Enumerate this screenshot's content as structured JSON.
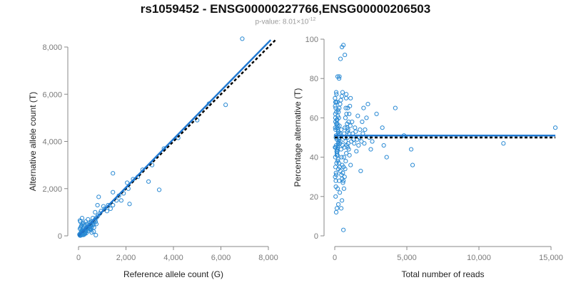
{
  "header": {
    "title": "rs1059452 - ENSG00000227766,ENSG00000206503",
    "pvalue_prefix": "p-value: 8.01×10",
    "pvalue_exp": "-12"
  },
  "colors": {
    "points": "#2a8ad4",
    "fit_line": "#1f78d1",
    "reference_line": "#000000",
    "axis": "#888888"
  },
  "chart_data": [
    {
      "type": "scatter",
      "xlabel": "Reference allele count (G)",
      "ylabel": "Alternative allele count (T)",
      "xlim": [
        0,
        8000
      ],
      "ylim": [
        0,
        8000
      ],
      "xticks": [
        0,
        2000,
        4000,
        6000,
        8000
      ],
      "xtick_labels": [
        "0",
        "2,000",
        "4,000",
        "6,000",
        "8,000"
      ],
      "yticks": [
        0,
        2000,
        4000,
        6000,
        8000
      ],
      "ytick_labels": [
        "0",
        "2,000",
        "4,000",
        "6,000",
        "8,000"
      ],
      "fit_line": {
        "x": [
          0,
          8100
        ],
        "y": [
          0,
          8300
        ]
      },
      "reference_line": {
        "x": [
          0,
          8300
        ],
        "y": [
          0,
          8300
        ],
        "style": "dashed"
      },
      "points": [
        [
          6900,
          8350
        ],
        [
          6200,
          5550
        ],
        [
          3400,
          1950
        ],
        [
          2950,
          2300
        ],
        [
          2050,
          2250
        ],
        [
          2150,
          1350
        ],
        [
          1800,
          1500
        ],
        [
          1450,
          2650
        ],
        [
          1450,
          1850
        ],
        [
          1450,
          1300
        ],
        [
          1350,
          1150
        ],
        [
          1050,
          1250
        ],
        [
          850,
          1650
        ],
        [
          800,
          1300
        ],
        [
          700,
          1000
        ],
        [
          600,
          750
        ],
        [
          650,
          500
        ],
        [
          550,
          350
        ],
        [
          400,
          250
        ],
        [
          300,
          200
        ],
        [
          200,
          150
        ],
        [
          150,
          100
        ],
        [
          100,
          50
        ],
        [
          50,
          30
        ],
        [
          80,
          600
        ],
        [
          60,
          650
        ],
        [
          150,
          750
        ],
        [
          200,
          550
        ],
        [
          250,
          450
        ],
        [
          300,
          600
        ],
        [
          350,
          500
        ],
        [
          400,
          700
        ],
        [
          450,
          400
        ],
        [
          500,
          550
        ],
        [
          550,
          600
        ],
        [
          600,
          450
        ],
        [
          650,
          350
        ],
        [
          700,
          700
        ],
        [
          750,
          500
        ],
        [
          500,
          300
        ],
        [
          350,
          300
        ],
        [
          250,
          250
        ],
        [
          120,
          200
        ],
        [
          180,
          300
        ],
        [
          220,
          350
        ],
        [
          280,
          150
        ],
        [
          320,
          250
        ],
        [
          380,
          350
        ],
        [
          420,
          200
        ],
        [
          470,
          300
        ],
        [
          520,
          250
        ],
        [
          90,
          120
        ],
        [
          140,
          180
        ],
        [
          160,
          220
        ],
        [
          60,
          80
        ],
        [
          40,
          60
        ],
        [
          110,
          90
        ],
        [
          130,
          140
        ],
        [
          170,
          170
        ],
        [
          190,
          210
        ],
        [
          230,
          190
        ],
        [
          260,
          230
        ],
        [
          290,
          270
        ],
        [
          310,
          320
        ],
        [
          340,
          280
        ],
        [
          360,
          380
        ],
        [
          390,
          330
        ],
        [
          430,
          450
        ],
        [
          460,
          420
        ],
        [
          480,
          380
        ],
        [
          510,
          480
        ],
        [
          530,
          430
        ],
        [
          560,
          500
        ],
        [
          580,
          540
        ],
        [
          620,
          620
        ],
        [
          680,
          650
        ],
        [
          720,
          600
        ],
        [
          760,
          780
        ],
        [
          820,
          850
        ],
        [
          900,
          950
        ],
        [
          950,
          1050
        ],
        [
          1100,
          1150
        ],
        [
          1200,
          1050
        ],
        [
          1250,
          1300
        ],
        [
          1600,
          1500
        ],
        [
          1700,
          1700
        ],
        [
          1900,
          1800
        ],
        [
          2100,
          2000
        ],
        [
          2300,
          2400
        ],
        [
          2500,
          2500
        ],
        [
          2700,
          2800
        ],
        [
          3100,
          3000
        ],
        [
          3600,
          3700
        ],
        [
          4200,
          4150
        ],
        [
          5000,
          4900
        ],
        [
          5500,
          5600
        ],
        [
          210,
          40
        ],
        [
          240,
          60
        ],
        [
          270,
          90
        ],
        [
          150,
          40
        ],
        [
          100,
          20
        ],
        [
          70,
          10
        ],
        [
          190,
          80
        ],
        [
          320,
          110
        ],
        [
          560,
          140
        ],
        [
          640,
          180
        ],
        [
          730,
          30
        ],
        [
          60,
          300
        ],
        [
          90,
          350
        ],
        [
          110,
          400
        ],
        [
          130,
          450
        ],
        [
          170,
          500
        ]
      ]
    },
    {
      "type": "scatter",
      "xlabel": "Total number of reads",
      "ylabel": "Percentage alternative (T)",
      "xlim": [
        0,
        15000
      ],
      "ylim": [
        0,
        100
      ],
      "xticks": [
        0,
        5000,
        10000,
        15000
      ],
      "xtick_labels": [
        "0",
        "5,000",
        "10,000",
        "15,000"
      ],
      "yticks": [
        0,
        20,
        40,
        60,
        80,
        100
      ],
      "ytick_labels": [
        "0",
        "20",
        "40",
        "60",
        "80",
        "100"
      ],
      "fit_line": {
        "x": [
          0,
          15300
        ],
        "y": [
          51,
          51
        ]
      },
      "reference_line": {
        "x": [
          0,
          15300
        ],
        "y": [
          50,
          50
        ],
        "style": "dashed"
      },
      "points": [
        [
          15300,
          55
        ],
        [
          11700,
          47
        ],
        [
          5400,
          36
        ],
        [
          5300,
          44
        ],
        [
          4800,
          51
        ],
        [
          4200,
          65
        ],
        [
          3600,
          40
        ],
        [
          3400,
          46
        ],
        [
          3300,
          55
        ],
        [
          2900,
          62
        ],
        [
          2600,
          48
        ],
        [
          2500,
          44
        ],
        [
          2400,
          50
        ],
        [
          2300,
          67
        ],
        [
          2200,
          60
        ],
        [
          2100,
          54
        ],
        [
          2000,
          65
        ],
        [
          1900,
          58
        ],
        [
          1800,
          33
        ],
        [
          1700,
          50
        ],
        [
          1600,
          61
        ],
        [
          1500,
          43
        ],
        [
          1400,
          55
        ],
        [
          1300,
          49
        ],
        [
          1200,
          58
        ],
        [
          1100,
          36
        ],
        [
          1000,
          52
        ],
        [
          900,
          65
        ],
        [
          800,
          72
        ],
        [
          700,
          92
        ],
        [
          600,
          97
        ],
        [
          500,
          96
        ],
        [
          400,
          90
        ],
        [
          300,
          80
        ],
        [
          250,
          16
        ],
        [
          200,
          24
        ],
        [
          150,
          14
        ],
        [
          100,
          12
        ],
        [
          600,
          3
        ],
        [
          500,
          18
        ],
        [
          450,
          14
        ],
        [
          350,
          22
        ],
        [
          300,
          28
        ],
        [
          250,
          34
        ],
        [
          200,
          38
        ],
        [
          150,
          42
        ],
        [
          100,
          46
        ],
        [
          80,
          50
        ],
        [
          60,
          54
        ],
        [
          50,
          58
        ],
        [
          40,
          62
        ],
        [
          30,
          66
        ],
        [
          20,
          70
        ],
        [
          120,
          72
        ],
        [
          180,
          68
        ],
        [
          220,
          64
        ],
        [
          280,
          60
        ],
        [
          320,
          56
        ],
        [
          360,
          52
        ],
        [
          400,
          48
        ],
        [
          440,
          44
        ],
        [
          480,
          40
        ],
        [
          520,
          36
        ],
        [
          560,
          32
        ],
        [
          600,
          28
        ],
        [
          640,
          24
        ],
        [
          680,
          30
        ],
        [
          720,
          34
        ],
        [
          760,
          38
        ],
        [
          800,
          42
        ],
        [
          840,
          46
        ],
        [
          880,
          50
        ],
        [
          920,
          54
        ],
        [
          960,
          58
        ],
        [
          1000,
          62
        ],
        [
          1050,
          66
        ],
        [
          1100,
          70
        ],
        [
          900,
          45
        ],
        [
          850,
          55
        ],
        [
          750,
          48
        ],
        [
          650,
          52
        ],
        [
          550,
          46
        ],
        [
          450,
          54
        ],
        [
          350,
          47
        ],
        [
          250,
          53
        ],
        [
          150,
          49
        ],
        [
          90,
          51
        ],
        [
          70,
          45
        ],
        [
          110,
          57
        ],
        [
          130,
          43
        ],
        [
          170,
          59
        ],
        [
          190,
          41
        ],
        [
          210,
          61
        ],
        [
          230,
          39
        ],
        [
          260,
          63
        ],
        [
          290,
          37
        ],
        [
          310,
          65
        ],
        [
          340,
          35
        ],
        [
          370,
          67
        ],
        [
          390,
          33
        ],
        [
          420,
          69
        ],
        [
          460,
          31
        ],
        [
          490,
          71
        ],
        [
          510,
          29
        ],
        [
          540,
          73
        ],
        [
          570,
          27
        ],
        [
          610,
          35
        ],
        [
          630,
          40
        ],
        [
          660,
          45
        ],
        [
          690,
          50
        ],
        [
          710,
          55
        ],
        [
          740,
          60
        ],
        [
          770,
          65
        ],
        [
          790,
          70
        ],
        [
          820,
          62
        ],
        [
          860,
          57
        ],
        [
          890,
          53
        ],
        [
          930,
          47
        ],
        [
          970,
          44
        ],
        [
          1020,
          41
        ],
        [
          1080,
          56
        ],
        [
          1150,
          48
        ],
        [
          1250,
          52
        ],
        [
          1350,
          47
        ],
        [
          1450,
          53
        ],
        [
          1550,
          49
        ],
        [
          1650,
          46
        ],
        [
          1750,
          54
        ],
        [
          1850,
          48
        ],
        [
          1950,
          52
        ],
        [
          2050,
          47
        ],
        [
          320,
          81
        ],
        [
          200,
          81
        ],
        [
          100,
          73
        ],
        [
          50,
          68
        ],
        [
          30,
          30
        ],
        [
          60,
          20
        ],
        [
          80,
          25
        ],
        [
          40,
          40
        ],
        [
          20,
          45
        ],
        [
          35,
          55
        ],
        [
          45,
          60
        ],
        [
          55,
          35
        ],
        [
          65,
          65
        ],
        [
          75,
          28
        ],
        [
          85,
          32
        ],
        [
          95,
          68
        ],
        [
          105,
          31
        ],
        [
          115,
          63
        ],
        [
          125,
          37
        ],
        [
          135,
          59
        ],
        [
          145,
          41
        ],
        [
          155,
          55
        ],
        [
          165,
          44
        ],
        [
          175,
          57
        ],
        [
          185,
          43
        ],
        [
          195,
          56
        ],
        [
          205,
          45
        ],
        [
          215,
          54
        ],
        [
          225,
          46
        ],
        [
          235,
          53
        ],
        [
          245,
          47
        ],
        [
          255,
          52
        ],
        [
          265,
          48
        ],
        [
          275,
          51
        ],
        [
          285,
          49
        ],
        [
          295,
          50
        ]
      ]
    }
  ]
}
